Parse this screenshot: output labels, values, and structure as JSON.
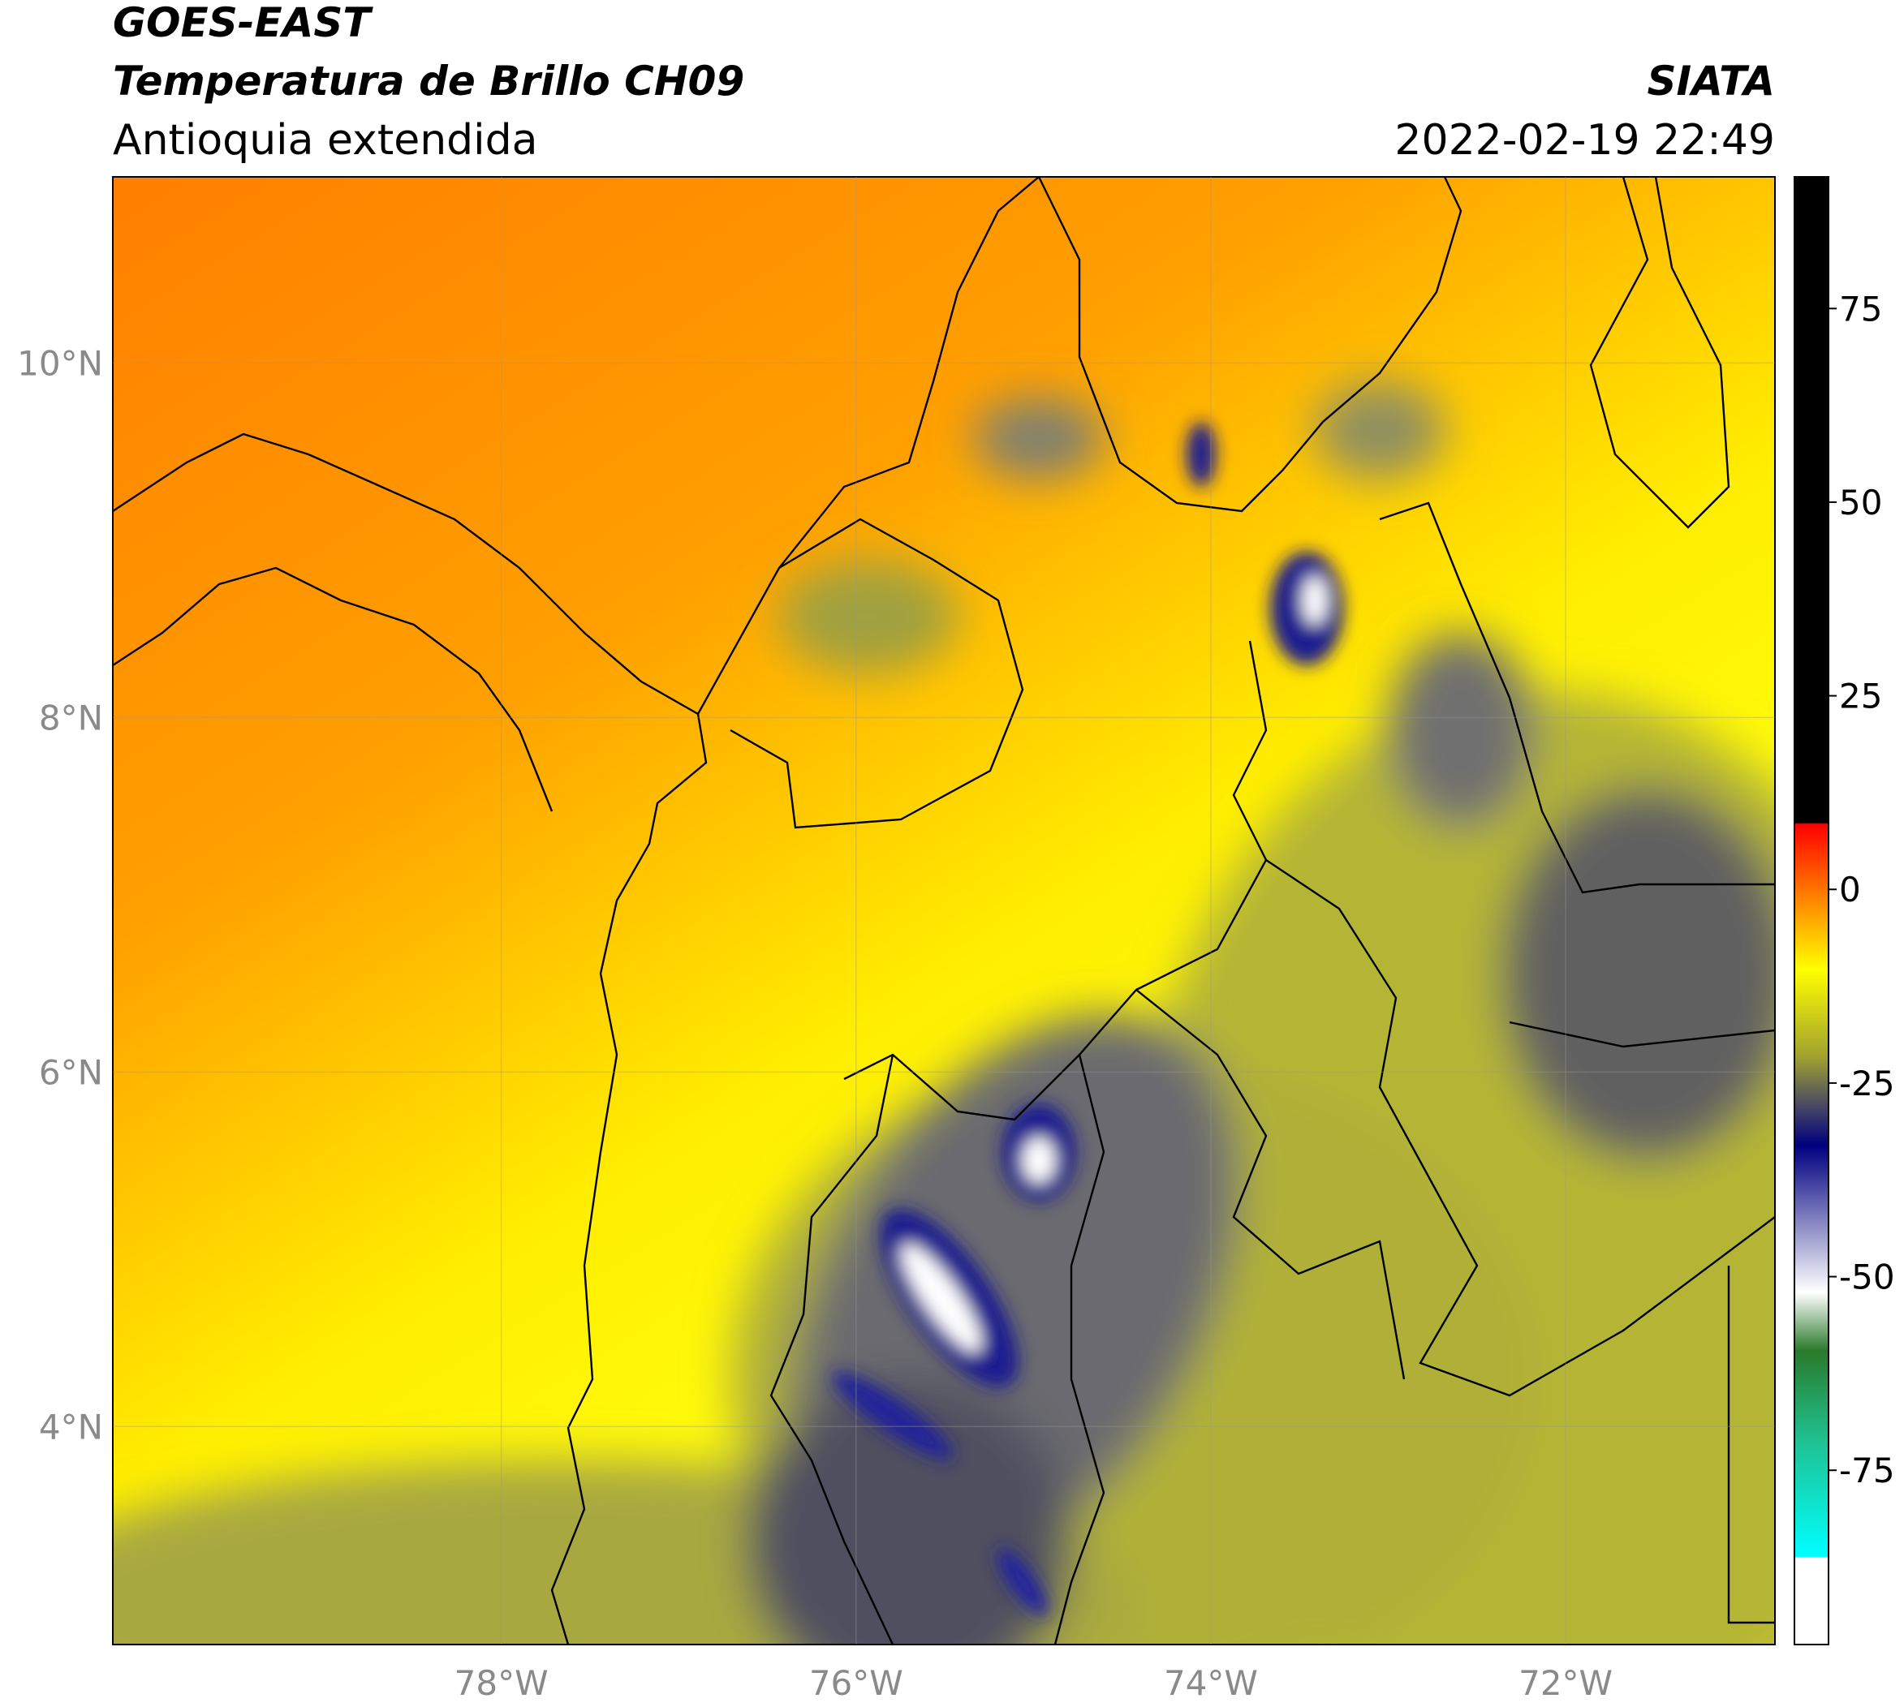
{
  "header": {
    "title": "GOES-EAST",
    "subtitle": "Temperatura de Brillo CH09",
    "region": "Antioquia extendida",
    "source": "SIATA",
    "datetime": "2022-02-19 22:49"
  },
  "map": {
    "xlim": [
      -80.19,
      -70.82
    ],
    "ylim": [
      2.77,
      11.05
    ],
    "xticks": [
      {
        "value": -78,
        "label": "78°W"
      },
      {
        "value": -76,
        "label": "76°W"
      },
      {
        "value": -74,
        "label": "74°W"
      },
      {
        "value": -72,
        "label": "72°W"
      }
    ],
    "yticks": [
      {
        "value": 10,
        "label": "10°N"
      },
      {
        "value": 8,
        "label": "8°N"
      },
      {
        "value": 6,
        "label": "6°N"
      },
      {
        "value": 4,
        "label": "4°N"
      }
    ]
  },
  "colorbar": {
    "lim": [
      -97.5,
      92
    ],
    "ticks": [
      75,
      50,
      25,
      0,
      -25,
      -50,
      -75
    ]
  }
}
